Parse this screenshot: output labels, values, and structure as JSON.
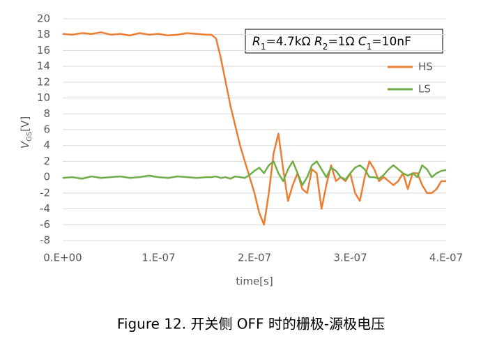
{
  "chart_data": {
    "type": "line",
    "caption": "Figure 12.  开关侧 OFF 时的栅极-源极电压",
    "annotation": [
      "R",
      "1",
      "=4.7kΩ  ",
      "R",
      "2",
      "=1Ω  ",
      "C",
      "1",
      "=10nF"
    ],
    "y_label": [
      "V",
      "GS",
      "[V]"
    ],
    "x_label": "time[s]",
    "x": [
      0,
      1e-08,
      2e-08,
      3e-08,
      4e-08,
      5e-08,
      6e-08,
      7e-08,
      8e-08,
      9e-08,
      1e-07,
      1.1e-07,
      1.2e-07,
      1.3e-07,
      1.4e-07,
      1.5e-07,
      1.55e-07,
      1.6e-07,
      1.65e-07,
      1.7e-07,
      1.75e-07,
      1.8e-07,
      1.85e-07,
      1.9e-07,
      1.95e-07,
      2e-07,
      2.05e-07,
      2.1e-07,
      2.15e-07,
      2.2e-07,
      2.25e-07,
      2.3e-07,
      2.35e-07,
      2.4e-07,
      2.45e-07,
      2.5e-07,
      2.55e-07,
      2.6e-07,
      2.65e-07,
      2.7e-07,
      2.75e-07,
      2.8e-07,
      2.85e-07,
      2.9e-07,
      2.95e-07,
      3e-07,
      3.05e-07,
      3.1e-07,
      3.15e-07,
      3.2e-07,
      3.25e-07,
      3.3e-07,
      3.35e-07,
      3.4e-07,
      3.45e-07,
      3.5e-07,
      3.55e-07,
      3.6e-07,
      3.65e-07,
      3.7e-07,
      3.75e-07,
      3.8e-07,
      3.85e-07,
      3.9e-07,
      3.95e-07,
      4e-07
    ],
    "series": [
      {
        "name": "HS",
        "color": "#ed7d31",
        "values": [
          18.1,
          18.0,
          18.2,
          18.1,
          18.3,
          18.0,
          18.1,
          17.9,
          18.2,
          18.0,
          18.1,
          17.9,
          18.0,
          18.2,
          18.1,
          18.0,
          18.0,
          17.5,
          15,
          12,
          9,
          6.5,
          4,
          2,
          0,
          -2,
          -4.5,
          -6,
          -2,
          3,
          5.5,
          1,
          -3,
          -1,
          0.5,
          -1.5,
          -2,
          1,
          0.5,
          -4,
          -1,
          1.5,
          -0.5,
          0,
          -0.5,
          0.5,
          -2,
          -3,
          0,
          2,
          1,
          -0.5,
          0,
          -0.5,
          -1,
          -0.5,
          0.5,
          -1.5,
          0.5,
          0.5,
          -1,
          -2,
          -2,
          -1.5,
          -0.5,
          -0.5
        ]
      },
      {
        "name": "LS",
        "color": "#70ad47",
        "values": [
          -0.1,
          0,
          -0.2,
          0.1,
          -0.1,
          0,
          0.1,
          -0.1,
          0,
          0.2,
          0,
          -0.1,
          0.1,
          0,
          -0.1,
          0,
          0,
          0.1,
          -0.1,
          0,
          -0.2,
          0.1,
          0,
          -0.1,
          0.3,
          0.8,
          1.2,
          0.5,
          1.5,
          2,
          0.5,
          -0.5,
          1,
          2,
          0.5,
          -1,
          0,
          1.5,
          2,
          1,
          0,
          1.2,
          0.8,
          0,
          -0.3,
          0.5,
          1.2,
          1.5,
          1,
          0,
          0,
          -0.2,
          0.3,
          1,
          1.5,
          1,
          0.5,
          0.2,
          0.5,
          0,
          1.5,
          1,
          0,
          0.5,
          0.8,
          0.9
        ]
      }
    ],
    "xlim": [
      0,
      4e-07
    ],
    "xticks": [
      {
        "value": 0,
        "label": "0.E+00"
      },
      {
        "value": 1e-07,
        "label": "1.E-07"
      },
      {
        "value": 2e-07,
        "label": "2.E-07"
      },
      {
        "value": 3e-07,
        "label": "3.E-07"
      },
      {
        "value": 4e-07,
        "label": "4.E-07"
      }
    ],
    "ylim": [
      -8,
      20
    ],
    "yticks": [
      -8,
      -6,
      -4,
      -2,
      0,
      2,
      4,
      6,
      8,
      10,
      12,
      14,
      16,
      18,
      20
    ],
    "grid": true
  }
}
